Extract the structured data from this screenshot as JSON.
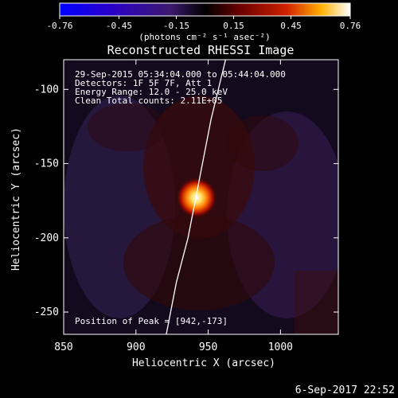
{
  "chart_data": {
    "type": "heatmap",
    "title": "Reconstructed RHESSI Image",
    "xlabel": "Heliocentric X (arcsec)",
    "ylabel": "Heliocentric Y (arcsec)",
    "xlim": [
      850,
      1040
    ],
    "ylim": [
      -265,
      -80
    ],
    "x_ticks": [
      "850",
      "900",
      "950",
      "1000"
    ],
    "x_tick_values": [
      850,
      900,
      950,
      1000
    ],
    "y_ticks": [
      "-100",
      "-150",
      "-200",
      "-250"
    ],
    "y_tick_values": [
      -100,
      -150,
      -200,
      -250
    ],
    "colorbar": {
      "range": [
        -0.76,
        0.76
      ],
      "ticks": [
        "-0.76",
        "-0.45",
        "-0.15",
        "0.15",
        "0.45",
        "0.76"
      ],
      "tick_values": [
        -0.76,
        -0.45,
        -0.15,
        0.15,
        0.45,
        0.76
      ],
      "unit_label": "(photons cm⁻² s⁻¹ asec⁻²)"
    },
    "annotations": {
      "time_range": "29-Sep-2015 05:34:04.000 to 05:44:04.000",
      "detectors": "Detectors: 1F 5F 7F, Att 1",
      "energy_range": "Energy Range: 12.0 - 25.0 keV",
      "method": "Clean    Total counts: 2.11E+05",
      "peak_position": "Position of Peak = [942,-173]"
    },
    "peak": {
      "x": 942,
      "y": -173
    },
    "limb_points": [
      [
        921,
        -265
      ],
      [
        928,
        -230
      ],
      [
        936,
        -200
      ],
      [
        944,
        -160
      ],
      [
        952,
        -120
      ],
      [
        962,
        -80
      ]
    ]
  },
  "footer": {
    "date": "6-Sep-2017 22:52"
  },
  "colors": {
    "background": "#000000",
    "text": "#ffffff",
    "limb": "#ffffff"
  }
}
